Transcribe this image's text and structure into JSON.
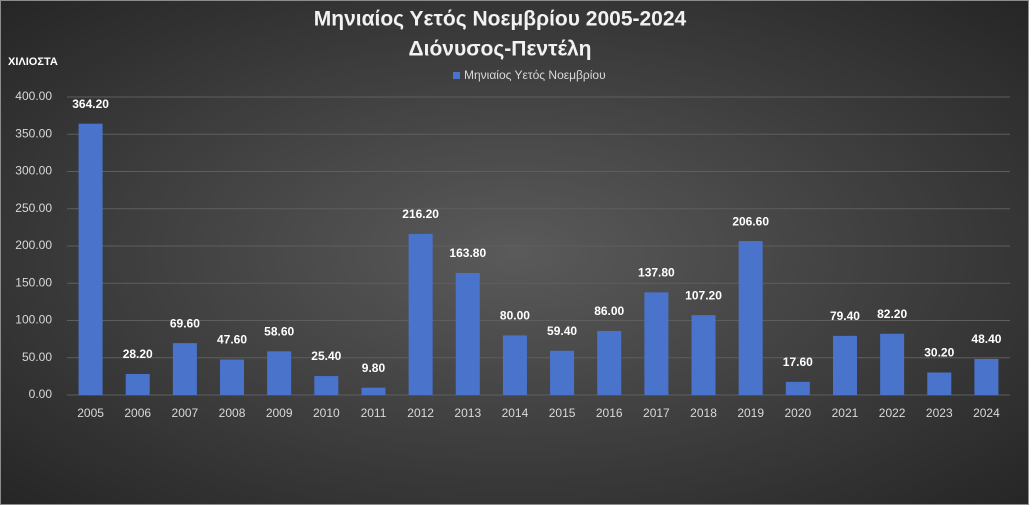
{
  "chart_data": {
    "type": "bar",
    "title": "Μηνιαίος Υετός  Νοεμβρίου 2005-2024",
    "subtitle": "Διόνυσος-Πεντέλη",
    "y_label": "ΧΙΛΙΟΣΤΑ",
    "categories": [
      "2005",
      "2006",
      "2007",
      "2008",
      "2009",
      "2010",
      "2011",
      "2012",
      "2013",
      "2014",
      "2015",
      "2016",
      "2017",
      "2018",
      "2019",
      "2020",
      "2021",
      "2022",
      "2023",
      "2024"
    ],
    "series": [
      {
        "name": "Μηνιαίος Υετός  Νοεμβρίου",
        "color": "#4a74cc",
        "values": [
          364.2,
          28.2,
          69.6,
          47.6,
          58.6,
          25.4,
          9.8,
          216.2,
          163.8,
          80,
          59.4,
          86,
          137.8,
          107.2,
          206.6,
          17.6,
          79.4,
          82.2,
          30.2,
          48.4
        ],
        "value_labels": [
          "364.20",
          "28.20",
          "69.60",
          "47.60",
          "58.60",
          "25.40",
          "9.80",
          "216.20",
          "163.80",
          "80.00",
          "59.40",
          "86.00",
          "137.80",
          "107.20",
          "206.60",
          "17.60",
          "79.40",
          "82.20",
          "30.20",
          "48.40"
        ]
      }
    ],
    "ylim": [
      0,
      400
    ],
    "yticks": [
      {
        "value": 0,
        "label": "0.00"
      },
      {
        "value": 50,
        "label": "50.00"
      },
      {
        "value": 100,
        "label": "100.00"
      },
      {
        "value": 150,
        "label": "150.00"
      },
      {
        "value": 200,
        "label": "200.00"
      },
      {
        "value": 250,
        "label": "250.00"
      },
      {
        "value": 300,
        "label": "300.00"
      },
      {
        "value": 350,
        "label": "350.00"
      },
      {
        "value": 400,
        "label": "400.00"
      }
    ],
    "grid": true,
    "legend": "top"
  }
}
